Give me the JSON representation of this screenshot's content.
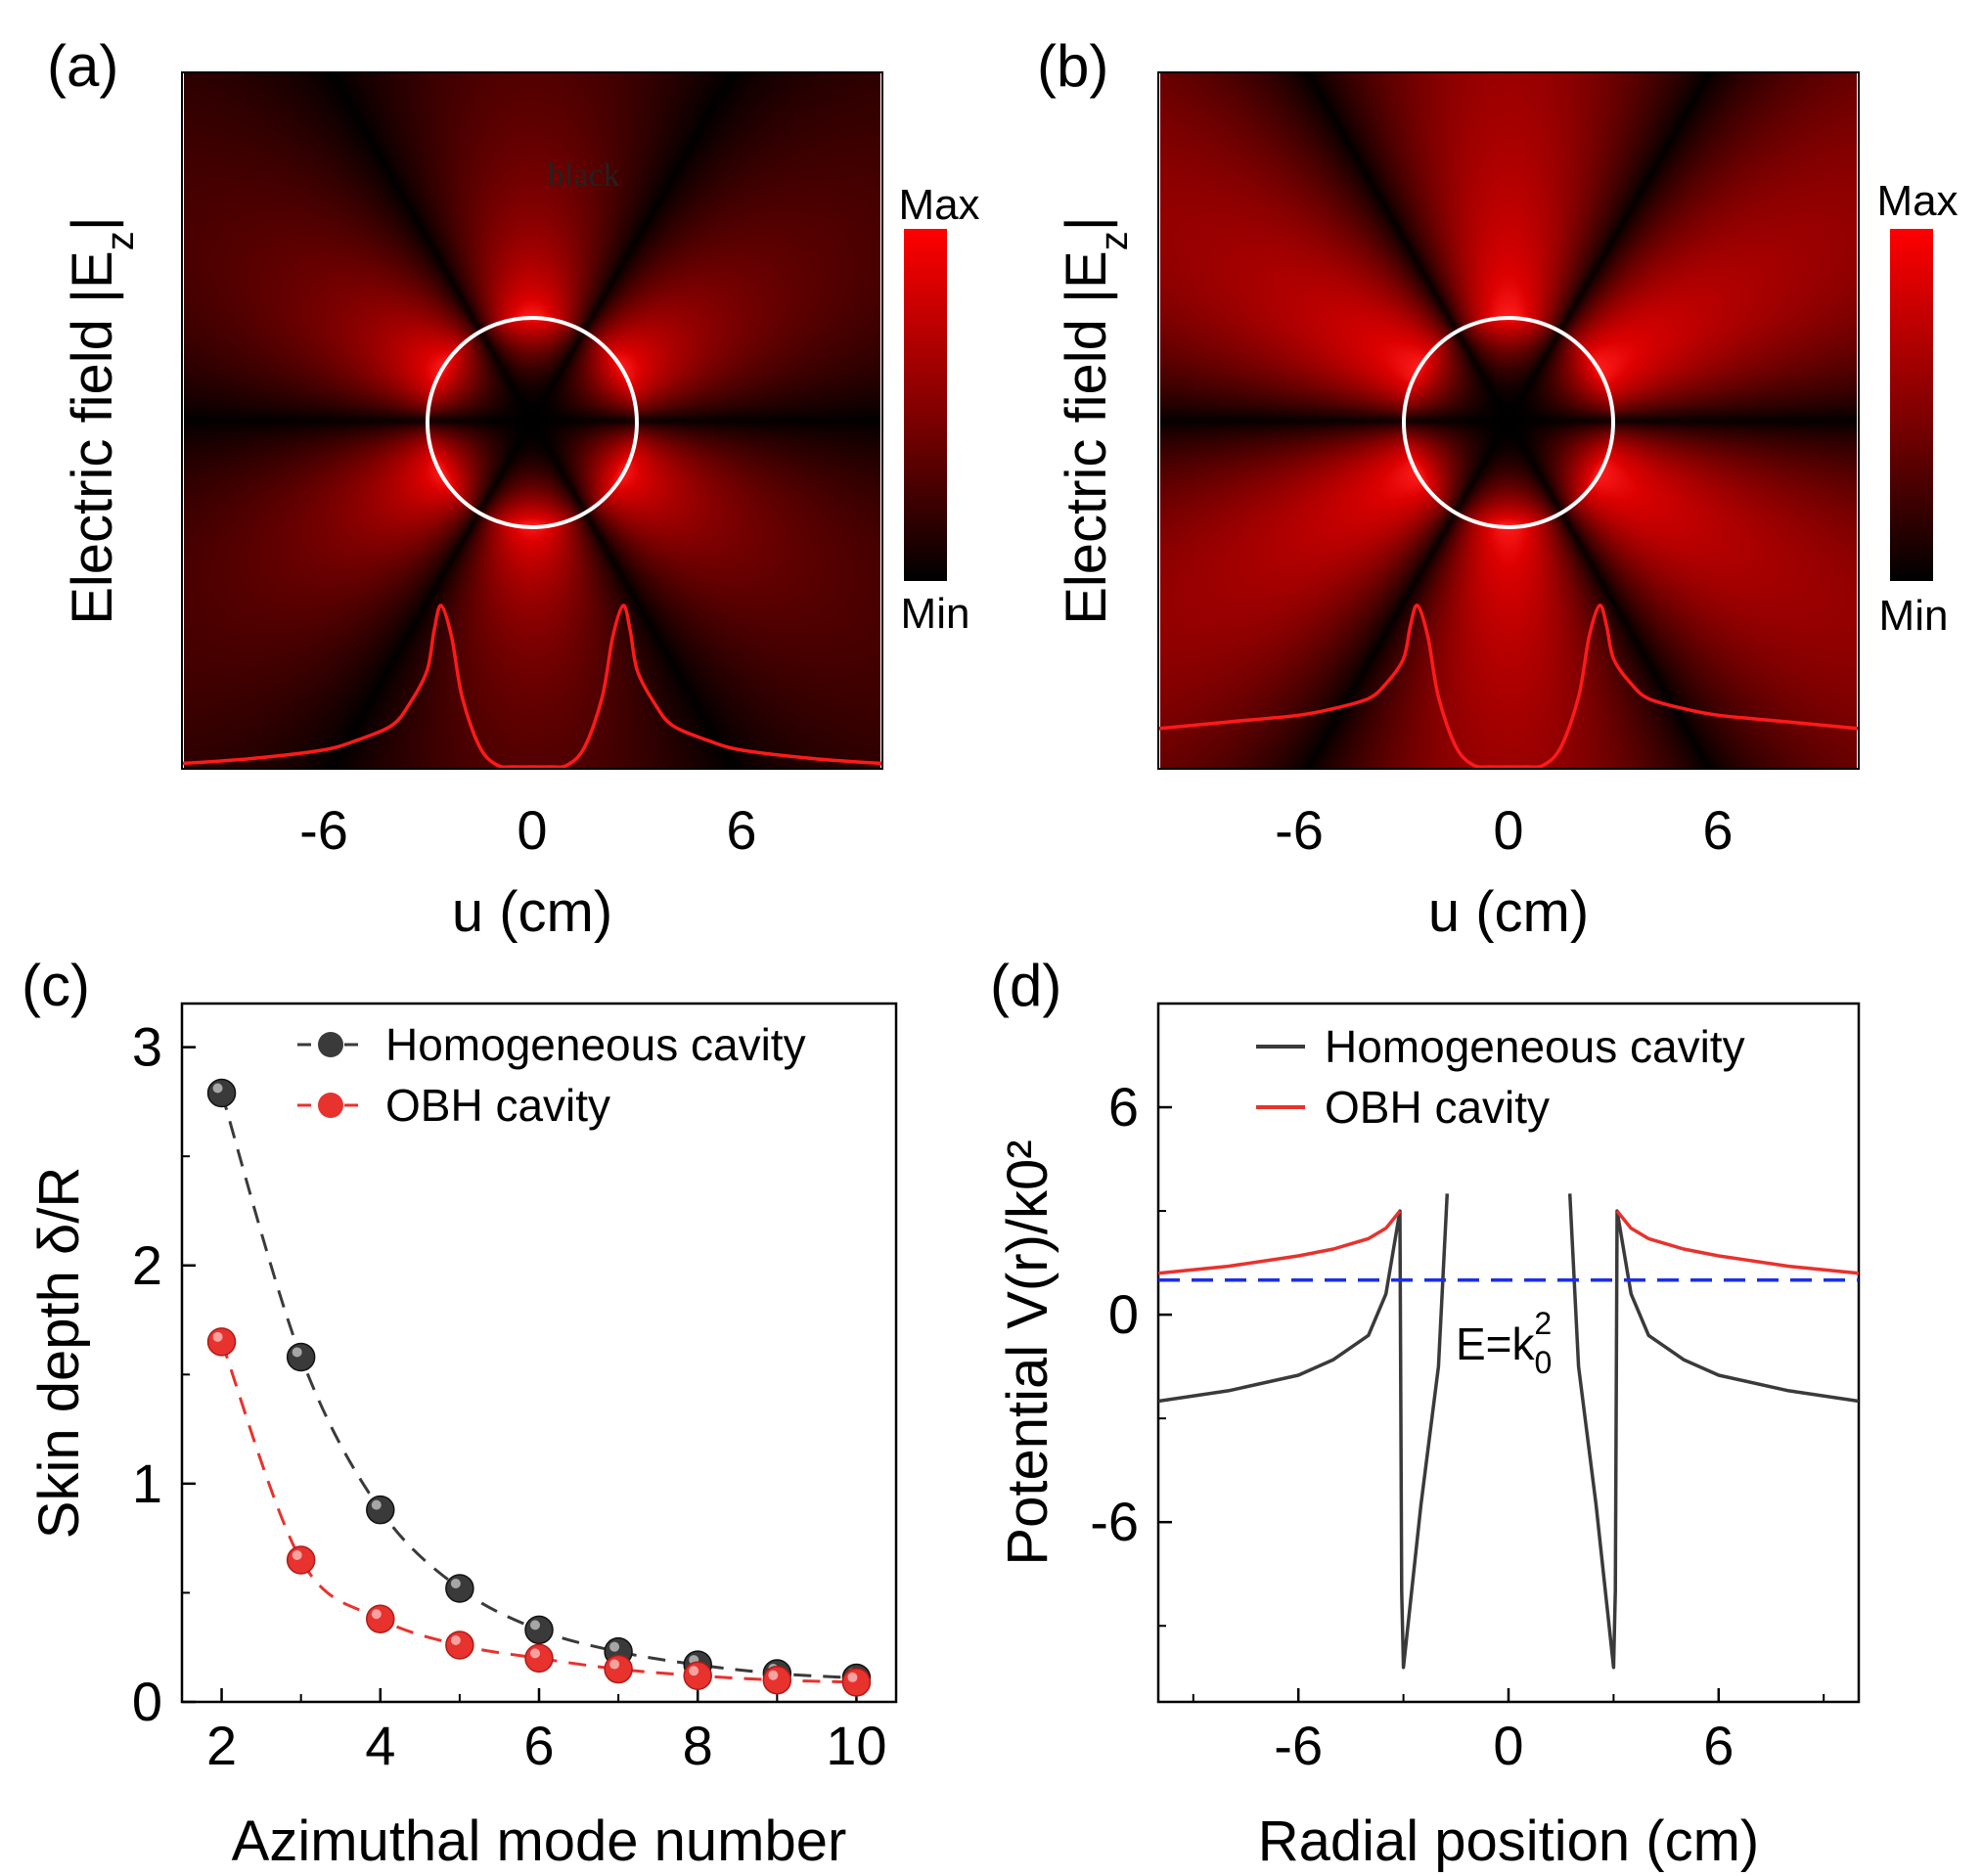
{
  "panels": {
    "a": {
      "label": "(a)",
      "ylabel": "Electric field |E",
      "ylabel_sub": "z",
      "ylabel_end": "|",
      "xlabel": "u (cm)",
      "xticks": [
        "-6",
        "0",
        "6"
      ],
      "colorbar_max": "Max",
      "colorbar_min": "Min",
      "stray_text": "black"
    },
    "b": {
      "label": "(b)",
      "ylabel": "Electric field |E",
      "ylabel_sub": "z",
      "ylabel_end": "|",
      "xlabel": "u (cm)",
      "xticks": [
        "-6",
        "0",
        "6"
      ],
      "colorbar_max": "Max",
      "colorbar_min": "Min"
    },
    "c": {
      "label": "(c)"
    },
    "d": {
      "label": "(d)",
      "annotation_base": "E=k",
      "annotation_sub": "0",
      "annotation_sup": "2"
    }
  },
  "colors": {
    "homogeneous": "#3a3a3a",
    "obh": "#e8322d",
    "energy_line": "#1a2fe6",
    "field_red": "#ff1010"
  },
  "chart_data": [
    {
      "id": "a",
      "type": "heatmap",
      "title": "",
      "xlabel": "u (cm)",
      "ylabel": "Electric field |Ez|",
      "xlim": [
        -10,
        10
      ],
      "xticks": [
        -6,
        0,
        6
      ],
      "mode_lobes": 6,
      "cavity_radius_cm": 3,
      "profile_x": [
        -10,
        -8,
        -6,
        -5,
        -4,
        -3.5,
        -3,
        -2.8,
        -2.6,
        -2.3,
        -2,
        -1.5,
        -1,
        -0.5,
        0,
        0.5,
        1,
        1.5,
        2,
        2.3,
        2.6,
        2.8,
        3,
        3.5,
        4,
        5,
        6,
        8,
        10
      ],
      "profile_y": [
        0.02,
        0.05,
        0.1,
        0.16,
        0.25,
        0.38,
        0.58,
        0.82,
        0.97,
        0.78,
        0.42,
        0.12,
        0.01,
        0,
        0,
        0,
        0.01,
        0.12,
        0.42,
        0.78,
        0.97,
        0.82,
        0.58,
        0.38,
        0.25,
        0.16,
        0.1,
        0.05,
        0.02
      ],
      "colorbar": [
        "Max",
        "Min"
      ]
    },
    {
      "id": "b",
      "type": "heatmap",
      "title": "",
      "xlabel": "u (cm)",
      "ylabel": "Electric field |Ez|",
      "xlim": [
        -10,
        10
      ],
      "xticks": [
        -6,
        0,
        6
      ],
      "mode_lobes": 6,
      "cavity_radius_cm": 3,
      "profile_x": [
        -10,
        -8,
        -6,
        -5,
        -4,
        -3.5,
        -3,
        -2.8,
        -2.6,
        -2.3,
        -2,
        -1.5,
        -1,
        -0.5,
        0,
        0.5,
        1,
        1.5,
        2,
        2.3,
        2.6,
        2.8,
        3,
        3.5,
        4,
        5,
        6,
        8,
        10
      ],
      "profile_y": [
        0.23,
        0.27,
        0.31,
        0.35,
        0.41,
        0.5,
        0.65,
        0.85,
        0.97,
        0.78,
        0.42,
        0.12,
        0.01,
        0,
        0,
        0,
        0.01,
        0.12,
        0.42,
        0.78,
        0.97,
        0.85,
        0.65,
        0.5,
        0.41,
        0.35,
        0.31,
        0.27,
        0.23
      ],
      "colorbar": [
        "Max",
        "Min"
      ]
    },
    {
      "id": "c",
      "type": "scatter",
      "title": "",
      "xlabel": "Azimuthal mode number",
      "ylabel": "Skin depth δ/R",
      "xlim": [
        1.5,
        10.5
      ],
      "ylim": [
        0,
        3.2
      ],
      "xticks": [
        2,
        4,
        6,
        8,
        10
      ],
      "yticks": [
        0,
        1,
        2,
        3
      ],
      "legend": "top-right",
      "series": [
        {
          "name": "Homogeneous cavity",
          "x": [
            2,
            3,
            4,
            5,
            6,
            7,
            8,
            9,
            10
          ],
          "y": [
            2.79,
            1.58,
            0.88,
            0.52,
            0.33,
            0.23,
            0.17,
            0.13,
            0.11
          ]
        },
        {
          "name": "OBH cavity",
          "x": [
            2,
            3,
            4,
            5,
            6,
            7,
            8,
            9,
            10
          ],
          "y": [
            1.65,
            0.65,
            0.38,
            0.26,
            0.2,
            0.15,
            0.12,
            0.1,
            0.09
          ]
        }
      ]
    },
    {
      "id": "d",
      "type": "line",
      "title": "",
      "xlabel": "Radial position (cm)",
      "ylabel": "Potential V(r)/k0²",
      "xlim": [
        -10,
        10
      ],
      "ylim": [
        -11.2,
        9
      ],
      "xticks": [
        -6,
        0,
        6
      ],
      "yticks": [
        -6,
        0,
        6
      ],
      "legend": "top-center",
      "series": [
        {
          "name": "Homogeneous cavity",
          "x": [
            -10,
            -8,
            -6,
            -5,
            -4,
            -3.5,
            -3.1,
            -3.05,
            -3,
            -2.5,
            -2,
            -1.75,
            1.75,
            2,
            2.5,
            3,
            3.05,
            3.1,
            3.5,
            4,
            5,
            6,
            8,
            10
          ],
          "y": [
            -2.5,
            -2.2,
            -1.75,
            -1.3,
            -0.6,
            0.6,
            3,
            -8,
            -10.2,
            -5.5,
            -1.5,
            3.5,
            3.5,
            -1.5,
            -5.5,
            -10.2,
            -8,
            3,
            0.6,
            -0.6,
            -1.3,
            -1.75,
            -2.2,
            -2.5
          ]
        },
        {
          "name": "OBH cavity",
          "x": [
            -10,
            -8,
            -6,
            -5,
            -4,
            -3.5,
            -3.1,
            3.1,
            3.5,
            4,
            5,
            6,
            8,
            10
          ],
          "y": [
            1.2,
            1.4,
            1.7,
            1.9,
            2.2,
            2.5,
            3,
            3,
            2.5,
            2.2,
            1.9,
            1.7,
            1.4,
            1.2
          ]
        },
        {
          "name": "E=k0²",
          "x": [
            -10,
            10
          ],
          "y": [
            1,
            1
          ]
        }
      ]
    }
  ]
}
